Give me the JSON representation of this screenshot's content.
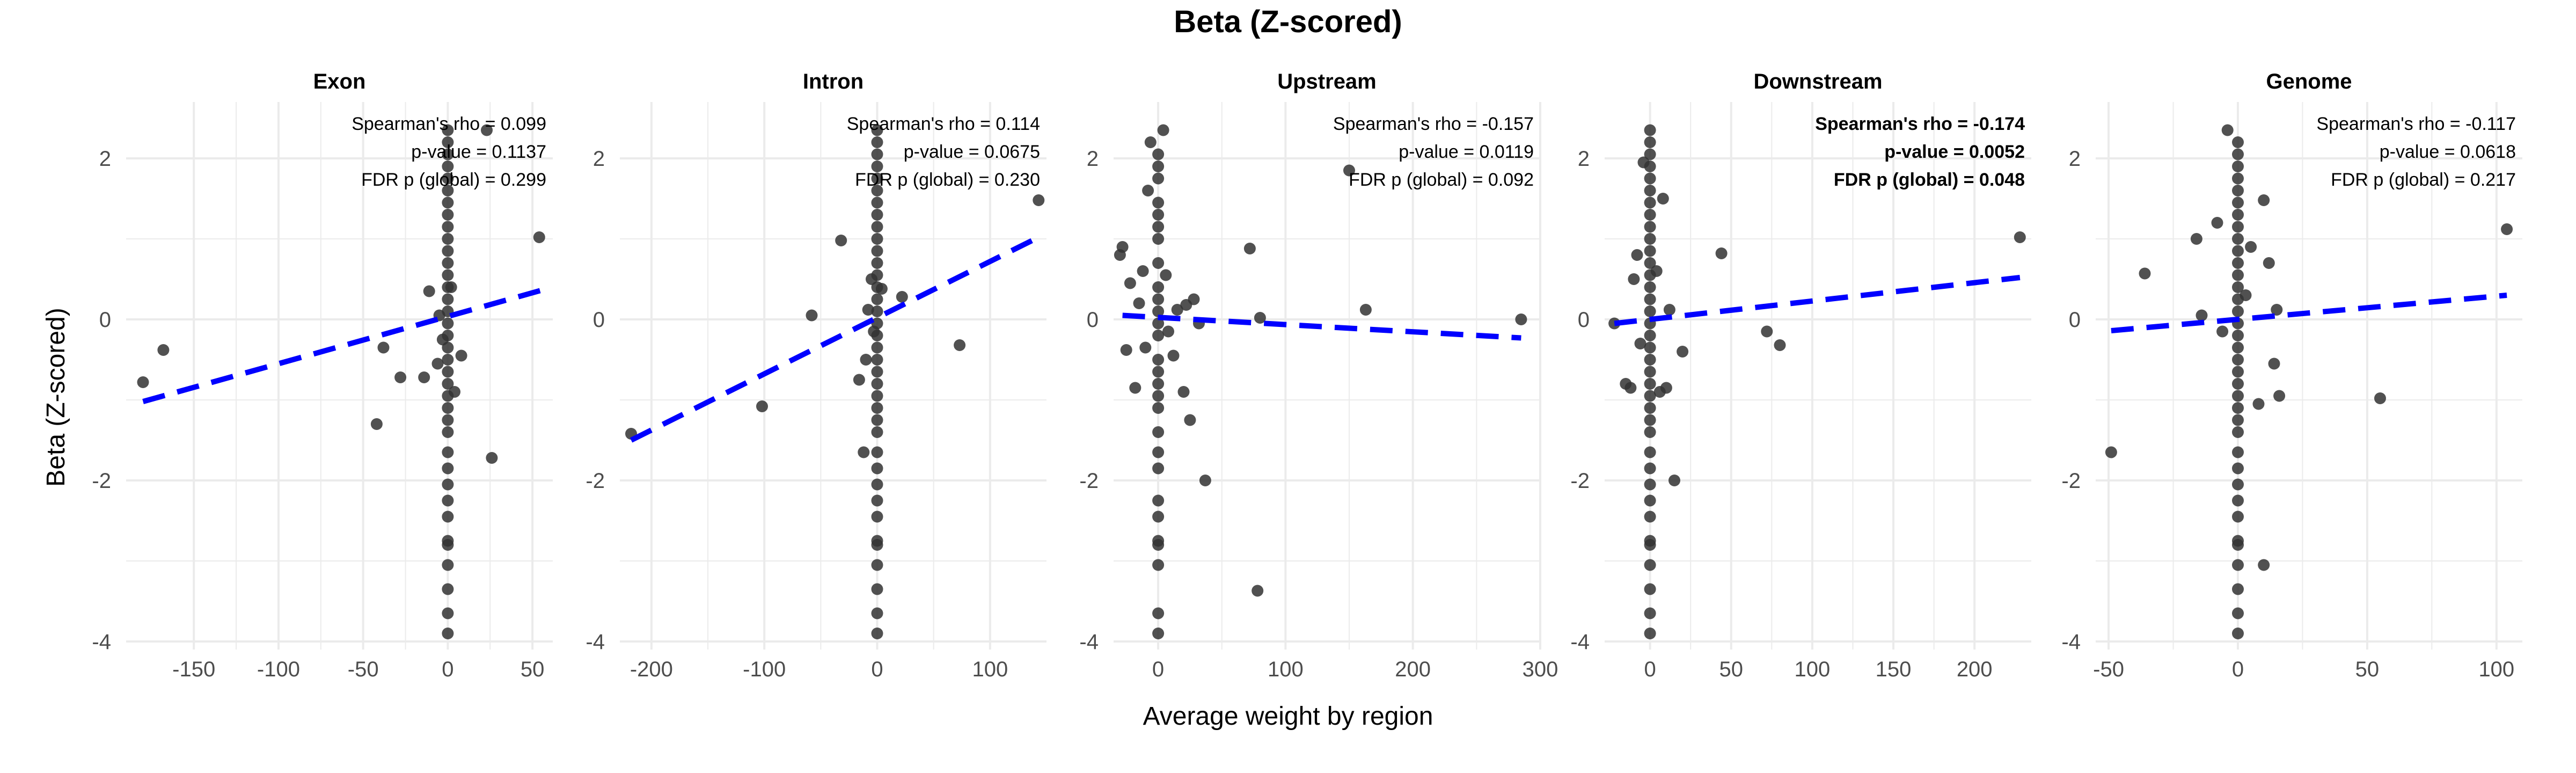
{
  "title": "Beta (Z-scored)",
  "xlabel": "Average weight by region",
  "ylabel": "Beta (Z-scored)",
  "colors": {
    "points": "#333333",
    "trend": "#0000ff",
    "highlight": "#ff0000",
    "grid": "#ebebeb"
  },
  "chart_data": [
    {
      "type": "scatter",
      "title": "Exon",
      "xlim": [
        -190,
        62
      ],
      "ylim": [
        -4.1,
        2.7
      ],
      "xticks": [
        -150,
        -100,
        -50,
        0,
        50
      ],
      "yticks": [
        -4,
        -2,
        0,
        2
      ],
      "highlight": false,
      "annotation": [
        "Spearman's rho = 0.099",
        "p-value = 0.1137",
        "FDR p (global) = 0.299"
      ],
      "trend": {
        "x": [
          -180,
          55
        ],
        "y": [
          -1.02,
          0.36
        ]
      },
      "points": [
        [
          -180,
          -0.78
        ],
        [
          -168,
          -0.38
        ],
        [
          -42,
          -1.3
        ],
        [
          -38,
          -0.35
        ],
        [
          -28,
          -0.72
        ],
        [
          -14,
          -0.72
        ],
        [
          -11,
          0.35
        ],
        [
          -6,
          -0.55
        ],
        [
          -5,
          0.05
        ],
        [
          -3,
          -0.25
        ],
        [
          2,
          0.4
        ],
        [
          4,
          -0.9
        ],
        [
          8,
          -0.45
        ],
        [
          26,
          -1.72
        ],
        [
          54,
          1.02
        ],
        [
          23,
          2.35
        ],
        [
          0,
          2.35
        ],
        [
          0,
          2.2
        ],
        [
          0,
          2.05
        ],
        [
          0,
          1.9
        ],
        [
          0,
          1.75
        ],
        [
          0,
          1.6
        ],
        [
          0,
          1.45
        ],
        [
          0,
          1.3
        ],
        [
          0,
          1.15
        ],
        [
          0,
          1.0
        ],
        [
          0,
          0.85
        ],
        [
          0,
          0.7
        ],
        [
          0,
          0.55
        ],
        [
          0,
          0.4
        ],
        [
          0,
          0.25
        ],
        [
          0,
          0.1
        ],
        [
          0,
          -0.05
        ],
        [
          0,
          -0.2
        ],
        [
          0,
          -0.35
        ],
        [
          0,
          -0.5
        ],
        [
          0,
          -0.65
        ],
        [
          0,
          -0.8
        ],
        [
          0,
          -0.95
        ],
        [
          0,
          -1.1
        ],
        [
          0,
          -1.25
        ],
        [
          0,
          -1.4
        ],
        [
          0,
          -1.65
        ],
        [
          0,
          -1.85
        ],
        [
          0,
          -2.05
        ],
        [
          0,
          -2.25
        ],
        [
          0,
          -2.45
        ],
        [
          0,
          -2.75
        ],
        [
          0,
          -2.8
        ],
        [
          0,
          -3.05
        ],
        [
          0,
          -3.35
        ],
        [
          0,
          -3.65
        ],
        [
          0,
          -3.9
        ]
      ]
    },
    {
      "type": "scatter",
      "title": "Intron",
      "xlim": [
        -228,
        150
      ],
      "ylim": [
        -4.1,
        2.7
      ],
      "xticks": [
        -200,
        -100,
        0,
        100
      ],
      "yticks": [
        -4,
        -2,
        0,
        2
      ],
      "highlight": false,
      "annotation": [
        "Spearman's rho = 0.114",
        "p-value = 0.0675",
        "FDR p (global) = 0.230"
      ],
      "trend": {
        "x": [
          -218,
          143
        ],
        "y": [
          -1.5,
          1.02
        ]
      },
      "points": [
        [
          -218,
          -1.42
        ],
        [
          -102,
          -1.08
        ],
        [
          -58,
          0.05
        ],
        [
          -32,
          0.98
        ],
        [
          -16,
          -0.75
        ],
        [
          -12,
          -1.65
        ],
        [
          -10,
          -0.5
        ],
        [
          -8,
          0.12
        ],
        [
          -5,
          0.5
        ],
        [
          -3,
          -0.15
        ],
        [
          4,
          0.38
        ],
        [
          22,
          0.28
        ],
        [
          73,
          -0.32
        ],
        [
          143,
          1.48
        ],
        [
          0,
          2.35
        ],
        [
          0,
          2.2
        ],
        [
          0,
          2.05
        ],
        [
          0,
          1.9
        ],
        [
          0,
          1.75
        ],
        [
          0,
          1.6
        ],
        [
          0,
          1.45
        ],
        [
          0,
          1.3
        ],
        [
          0,
          1.15
        ],
        [
          0,
          1.0
        ],
        [
          0,
          0.85
        ],
        [
          0,
          0.7
        ],
        [
          0,
          0.55
        ],
        [
          0,
          0.4
        ],
        [
          0,
          0.25
        ],
        [
          0,
          0.1
        ],
        [
          0,
          -0.05
        ],
        [
          0,
          -0.2
        ],
        [
          0,
          -0.35
        ],
        [
          0,
          -0.5
        ],
        [
          0,
          -0.65
        ],
        [
          0,
          -0.8
        ],
        [
          0,
          -0.95
        ],
        [
          0,
          -1.1
        ],
        [
          0,
          -1.25
        ],
        [
          0,
          -1.4
        ],
        [
          0,
          -1.65
        ],
        [
          0,
          -1.85
        ],
        [
          0,
          -2.05
        ],
        [
          0,
          -2.25
        ],
        [
          0,
          -2.45
        ],
        [
          0,
          -2.75
        ],
        [
          0,
          -2.8
        ],
        [
          0,
          -3.05
        ],
        [
          0,
          -3.35
        ],
        [
          0,
          -3.65
        ],
        [
          0,
          -3.9
        ]
      ]
    },
    {
      "type": "scatter",
      "title": "Upstream",
      "xlim": [
        -35,
        300
      ],
      "ylim": [
        -4.1,
        2.7
      ],
      "xticks": [
        0,
        100,
        200,
        300
      ],
      "yticks": [
        -4,
        -2,
        0,
        2
      ],
      "highlight": false,
      "annotation": [
        "Spearman's rho = -0.157",
        "p-value = 0.0119",
        "FDR p (global) = 0.092"
      ],
      "trend": {
        "x": [
          -28,
          285
        ],
        "y": [
          0.05,
          -0.23
        ]
      },
      "points": [
        [
          -30,
          0.8
        ],
        [
          -28,
          0.9
        ],
        [
          -25,
          -0.38
        ],
        [
          -22,
          0.45
        ],
        [
          -18,
          -0.85
        ],
        [
          -15,
          0.2
        ],
        [
          -12,
          0.6
        ],
        [
          -10,
          -0.35
        ],
        [
          -8,
          1.6
        ],
        [
          -6,
          2.2
        ],
        [
          4,
          2.35
        ],
        [
          6,
          0.55
        ],
        [
          8,
          -0.15
        ],
        [
          12,
          -0.45
        ],
        [
          15,
          0.12
        ],
        [
          20,
          -0.9
        ],
        [
          22,
          0.18
        ],
        [
          25,
          -1.25
        ],
        [
          28,
          0.25
        ],
        [
          32,
          -0.05
        ],
        [
          37,
          -2.0
        ],
        [
          72,
          0.88
        ],
        [
          78,
          -3.37
        ],
        [
          80,
          0.02
        ],
        [
          150,
          1.85
        ],
        [
          163,
          0.12
        ],
        [
          285,
          0.0
        ],
        [
          0,
          2.05
        ],
        [
          0,
          1.9
        ],
        [
          0,
          1.75
        ],
        [
          0,
          1.45
        ],
        [
          0,
          1.3
        ],
        [
          0,
          1.15
        ],
        [
          0,
          1.0
        ],
        [
          0,
          0.7
        ],
        [
          0,
          0.4
        ],
        [
          0,
          0.25
        ],
        [
          0,
          0.1
        ],
        [
          0,
          -0.05
        ],
        [
          0,
          -0.2
        ],
        [
          0,
          -0.5
        ],
        [
          0,
          -0.65
        ],
        [
          0,
          -0.8
        ],
        [
          0,
          -0.95
        ],
        [
          0,
          -1.1
        ],
        [
          0,
          -1.4
        ],
        [
          0,
          -1.65
        ],
        [
          0,
          -1.85
        ],
        [
          0,
          -2.25
        ],
        [
          0,
          -2.45
        ],
        [
          0,
          -2.75
        ],
        [
          0,
          -2.8
        ],
        [
          0,
          -3.05
        ],
        [
          0,
          -3.65
        ],
        [
          0,
          -3.9
        ]
      ]
    },
    {
      "type": "scatter",
      "title": "Downstream",
      "xlim": [
        -28,
        235
      ],
      "ylim": [
        -4.1,
        2.7
      ],
      "xticks": [
        0,
        50,
        100,
        150,
        200
      ],
      "yticks": [
        -4,
        -2,
        0,
        2
      ],
      "highlight": true,
      "annotation": [
        "Spearman's rho = -0.174",
        "p-value = 0.0052",
        "FDR p (global) = 0.048"
      ],
      "trend": {
        "x": [
          -22,
          228
        ],
        "y": [
          -0.05,
          0.52
        ]
      },
      "points": [
        [
          -22,
          -0.05
        ],
        [
          -15,
          -0.8
        ],
        [
          -12,
          -0.85
        ],
        [
          -10,
          0.5
        ],
        [
          -8,
          0.8
        ],
        [
          -6,
          -0.3
        ],
        [
          -4,
          1.95
        ],
        [
          4,
          0.6
        ],
        [
          6,
          -0.9
        ],
        [
          8,
          1.5
        ],
        [
          10,
          -0.85
        ],
        [
          12,
          0.12
        ],
        [
          15,
          -2.0
        ],
        [
          20,
          -0.4
        ],
        [
          44,
          0.82
        ],
        [
          72,
          -0.15
        ],
        [
          80,
          -0.32
        ],
        [
          228,
          1.02
        ],
        [
          0,
          2.35
        ],
        [
          0,
          2.2
        ],
        [
          0,
          2.05
        ],
        [
          0,
          1.9
        ],
        [
          0,
          1.75
        ],
        [
          0,
          1.6
        ],
        [
          0,
          1.45
        ],
        [
          0,
          1.3
        ],
        [
          0,
          1.15
        ],
        [
          0,
          1.0
        ],
        [
          0,
          0.85
        ],
        [
          0,
          0.7
        ],
        [
          0,
          0.55
        ],
        [
          0,
          0.4
        ],
        [
          0,
          0.25
        ],
        [
          0,
          0.1
        ],
        [
          0,
          -0.05
        ],
        [
          0,
          -0.2
        ],
        [
          0,
          -0.35
        ],
        [
          0,
          -0.5
        ],
        [
          0,
          -0.65
        ],
        [
          0,
          -0.8
        ],
        [
          0,
          -0.95
        ],
        [
          0,
          -1.1
        ],
        [
          0,
          -1.25
        ],
        [
          0,
          -1.4
        ],
        [
          0,
          -1.65
        ],
        [
          0,
          -1.85
        ],
        [
          0,
          -2.05
        ],
        [
          0,
          -2.25
        ],
        [
          0,
          -2.45
        ],
        [
          0,
          -2.75
        ],
        [
          0,
          -2.8
        ],
        [
          0,
          -3.05
        ],
        [
          0,
          -3.35
        ],
        [
          0,
          -3.65
        ],
        [
          0,
          -3.9
        ]
      ]
    },
    {
      "type": "scatter",
      "title": "Genome",
      "xlim": [
        -55,
        110
      ],
      "ylim": [
        -4.1,
        2.7
      ],
      "xticks": [
        -50,
        0,
        50,
        100
      ],
      "yticks": [
        -4,
        -2,
        0,
        2
      ],
      "highlight": false,
      "annotation": [
        "Spearman's rho = -0.117",
        "p-value = 0.0618",
        "FDR p (global) = 0.217"
      ],
      "trend": {
        "x": [
          -49,
          104
        ],
        "y": [
          -0.14,
          0.3
        ]
      },
      "points": [
        [
          -49,
          -1.65
        ],
        [
          -36,
          0.57
        ],
        [
          -16,
          1.0
        ],
        [
          -14,
          0.05
        ],
        [
          -8,
          1.2
        ],
        [
          -6,
          -0.15
        ],
        [
          -4,
          2.35
        ],
        [
          3,
          0.3
        ],
        [
          5,
          0.9
        ],
        [
          8,
          -1.05
        ],
        [
          10,
          1.48
        ],
        [
          12,
          0.7
        ],
        [
          14,
          -0.55
        ],
        [
          15,
          0.12
        ],
        [
          16,
          -0.95
        ],
        [
          10,
          -3.05
        ],
        [
          55,
          -0.98
        ],
        [
          104,
          1.12
        ],
        [
          0,
          2.2
        ],
        [
          0,
          2.05
        ],
        [
          0,
          1.9
        ],
        [
          0,
          1.75
        ],
        [
          0,
          1.6
        ],
        [
          0,
          1.45
        ],
        [
          0,
          1.3
        ],
        [
          0,
          1.15
        ],
        [
          0,
          1.0
        ],
        [
          0,
          0.85
        ],
        [
          0,
          0.7
        ],
        [
          0,
          0.55
        ],
        [
          0,
          0.4
        ],
        [
          0,
          0.25
        ],
        [
          0,
          0.1
        ],
        [
          0,
          -0.05
        ],
        [
          0,
          -0.2
        ],
        [
          0,
          -0.35
        ],
        [
          0,
          -0.5
        ],
        [
          0,
          -0.65
        ],
        [
          0,
          -0.8
        ],
        [
          0,
          -0.95
        ],
        [
          0,
          -1.1
        ],
        [
          0,
          -1.25
        ],
        [
          0,
          -1.4
        ],
        [
          0,
          -1.65
        ],
        [
          0,
          -1.85
        ],
        [
          0,
          -2.05
        ],
        [
          0,
          -2.25
        ],
        [
          0,
          -2.45
        ],
        [
          0,
          -2.75
        ],
        [
          0,
          -2.8
        ],
        [
          0,
          -3.05
        ],
        [
          0,
          -3.35
        ],
        [
          0,
          -3.65
        ],
        [
          0,
          -3.9
        ]
      ]
    }
  ]
}
